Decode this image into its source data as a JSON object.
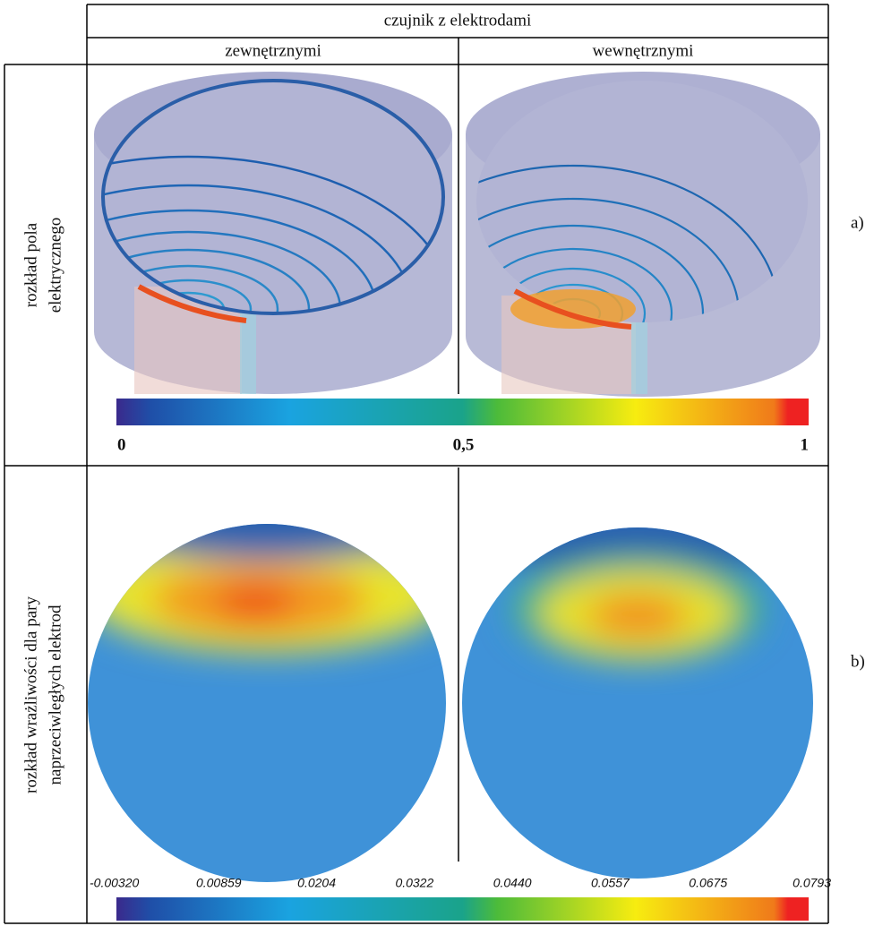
{
  "header": {
    "title": "czujnik z elektrodami",
    "columns": [
      "zewnętrznymi",
      "wewnętrznymi"
    ]
  },
  "rows": [
    {
      "label_lines": [
        "rozkład pola",
        "elektrycznego"
      ],
      "tag": "a)",
      "colorbar": [
        "0",
        "0,5",
        "1"
      ]
    },
    {
      "label_lines": [
        "rozkład wrażliwości dla pary",
        "naprzeciwległych elektrod"
      ],
      "tag": "b)",
      "colorbar": [
        "-0.00320",
        "0.00859",
        "0.0204",
        "0.0322",
        "0.0440",
        "0.0557",
        "0.0675",
        "0.0793"
      ]
    }
  ]
}
